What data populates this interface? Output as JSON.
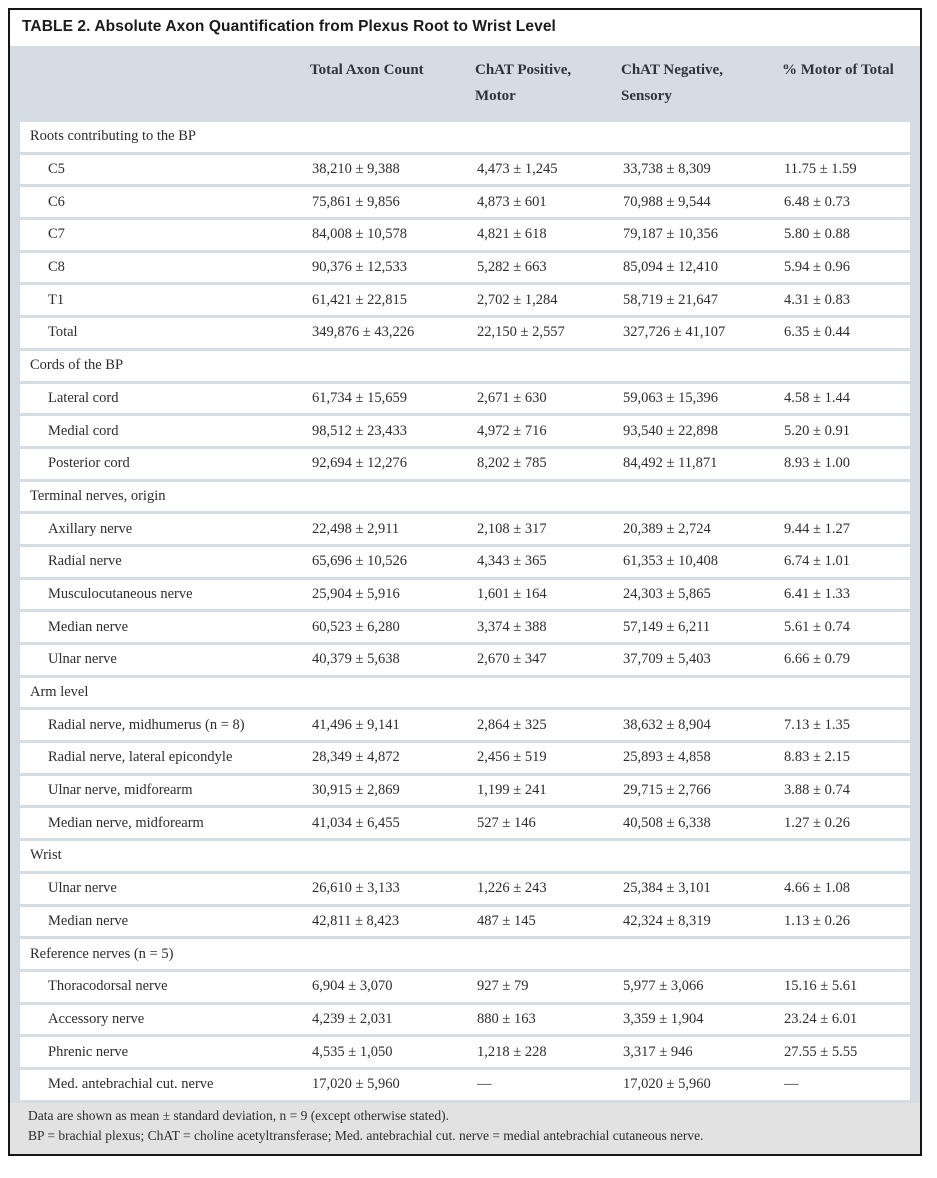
{
  "table": {
    "title": "TABLE 2. Absolute Axon Quantification from Plexus Root to Wrist Level",
    "columns": [
      "Total Axon Count",
      "ChAT Positive, Motor",
      "ChAT Negative, Sensory",
      "% Motor of Total"
    ],
    "column_keys": [
      "total-axon-count",
      "chat-positive-motor",
      "chat-negative-sensory",
      "pct-motor-of-total"
    ],
    "sections": [
      {
        "name": "Roots contributing to the BP",
        "rows": [
          {
            "label": "C5",
            "values": [
              "38,210 ± 9,388",
              "4,473 ± 1,245",
              "33,738 ± 8,309",
              "11.75 ± 1.59"
            ]
          },
          {
            "label": "C6",
            "values": [
              "75,861 ± 9,856",
              "4,873 ± 601",
              "70,988 ± 9,544",
              "6.48 ± 0.73"
            ]
          },
          {
            "label": "C7",
            "values": [
              "84,008 ± 10,578",
              "4,821 ± 618",
              "79,187 ± 10,356",
              "5.80 ± 0.88"
            ]
          },
          {
            "label": "C8",
            "values": [
              "90,376 ± 12,533",
              "5,282 ± 663",
              "85,094 ± 12,410",
              "5.94 ± 0.96"
            ]
          },
          {
            "label": "T1",
            "values": [
              "61,421 ± 22,815",
              "2,702 ± 1,284",
              "58,719 ± 21,647",
              "4.31 ± 0.83"
            ]
          },
          {
            "label": "Total",
            "values": [
              "349,876 ± 43,226",
              "22,150 ± 2,557",
              "327,726 ± 41,107",
              "6.35 ± 0.44"
            ]
          }
        ]
      },
      {
        "name": "Cords of the BP",
        "rows": [
          {
            "label": "Lateral cord",
            "values": [
              "61,734 ± 15,659",
              "2,671 ± 630",
              "59,063 ± 15,396",
              "4.58 ± 1.44"
            ]
          },
          {
            "label": "Medial cord",
            "values": [
              "98,512 ± 23,433",
              "4,972 ± 716",
              "93,540 ± 22,898",
              "5.20 ± 0.91"
            ]
          },
          {
            "label": "Posterior cord",
            "values": [
              "92,694 ± 12,276",
              "8,202 ± 785",
              "84,492 ± 11,871",
              "8.93 ± 1.00"
            ]
          }
        ]
      },
      {
        "name": "Terminal nerves, origin",
        "rows": [
          {
            "label": "Axillary nerve",
            "values": [
              "22,498 ± 2,911",
              "2,108 ± 317",
              "20,389 ± 2,724",
              "9.44 ± 1.27"
            ]
          },
          {
            "label": "Radial nerve",
            "values": [
              "65,696 ± 10,526",
              "4,343 ± 365",
              "61,353 ± 10,408",
              "6.74 ± 1.01"
            ]
          },
          {
            "label": "Musculocutaneous nerve",
            "values": [
              "25,904 ± 5,916",
              "1,601 ± 164",
              "24,303 ± 5,865",
              "6.41 ± 1.33"
            ]
          },
          {
            "label": "Median nerve",
            "values": [
              "60,523 ± 6,280",
              "3,374 ± 388",
              "57,149 ± 6,211",
              "5.61 ± 0.74"
            ]
          },
          {
            "label": "Ulnar nerve",
            "values": [
              "40,379 ± 5,638",
              "2,670 ± 347",
              "37,709 ± 5,403",
              "6.66 ± 0.79"
            ]
          }
        ]
      },
      {
        "name": "Arm level",
        "rows": [
          {
            "label": "Radial nerve, midhumerus (n = 8)",
            "values": [
              "41,496 ± 9,141",
              "2,864 ± 325",
              "38,632 ± 8,904",
              "7.13 ± 1.35"
            ]
          },
          {
            "label": "Radial nerve, lateral epicondyle",
            "values": [
              "28,349 ± 4,872",
              "2,456 ± 519",
              "25,893 ± 4,858",
              "8.83 ± 2.15"
            ]
          },
          {
            "label": "Ulnar nerve, midforearm",
            "values": [
              "30,915 ± 2,869",
              "1,199 ± 241",
              "29,715 ± 2,766",
              "3.88 ± 0.74"
            ]
          },
          {
            "label": "Median nerve, midforearm",
            "values": [
              "41,034 ± 6,455",
              "527 ± 146",
              "40,508 ± 6,338",
              "1.27 ± 0.26"
            ]
          }
        ]
      },
      {
        "name": "Wrist",
        "rows": [
          {
            "label": "Ulnar nerve",
            "values": [
              "26,610 ± 3,133",
              "1,226 ± 243",
              "25,384 ± 3,101",
              "4.66 ± 1.08"
            ]
          },
          {
            "label": "Median nerve",
            "values": [
              "42,811 ± 8,423",
              "487 ± 145",
              "42,324 ± 8,319",
              "1.13 ± 0.26"
            ]
          }
        ]
      },
      {
        "name": "Reference nerves (n = 5)",
        "rows": [
          {
            "label": "Thoracodorsal nerve",
            "values": [
              "6,904 ± 3,070",
              "927 ± 79",
              "5,977 ± 3,066",
              "15.16 ± 5.61"
            ]
          },
          {
            "label": "Accessory nerve",
            "values": [
              "4,239 ± 2,031",
              "880 ± 163",
              "3,359 ± 1,904",
              "23.24 ± 6.01"
            ]
          },
          {
            "label": "Phrenic nerve",
            "values": [
              "4,535 ± 1,050",
              "1,218 ± 228",
              "3,317 ± 946",
              "27.55 ± 5.55"
            ]
          },
          {
            "label": "Med. antebrachial cut. nerve",
            "values": [
              "17,020 ± 5,960",
              "—",
              "17,020 ± 5,960",
              "—"
            ]
          }
        ]
      }
    ],
    "footnotes": [
      "Data are shown as mean ± standard deviation, n = 9 (except otherwise stated).",
      "BP = brachial plexus; ChAT = choline acetyltransferase; Med. antebrachial cut. nerve = medial antebrachial cutaneous nerve."
    ]
  },
  "colors": {
    "band_blue": "#d5dde4",
    "footer_gray": "#e2e2e2",
    "border_black": "#161616",
    "text": "#2d2d2d"
  }
}
